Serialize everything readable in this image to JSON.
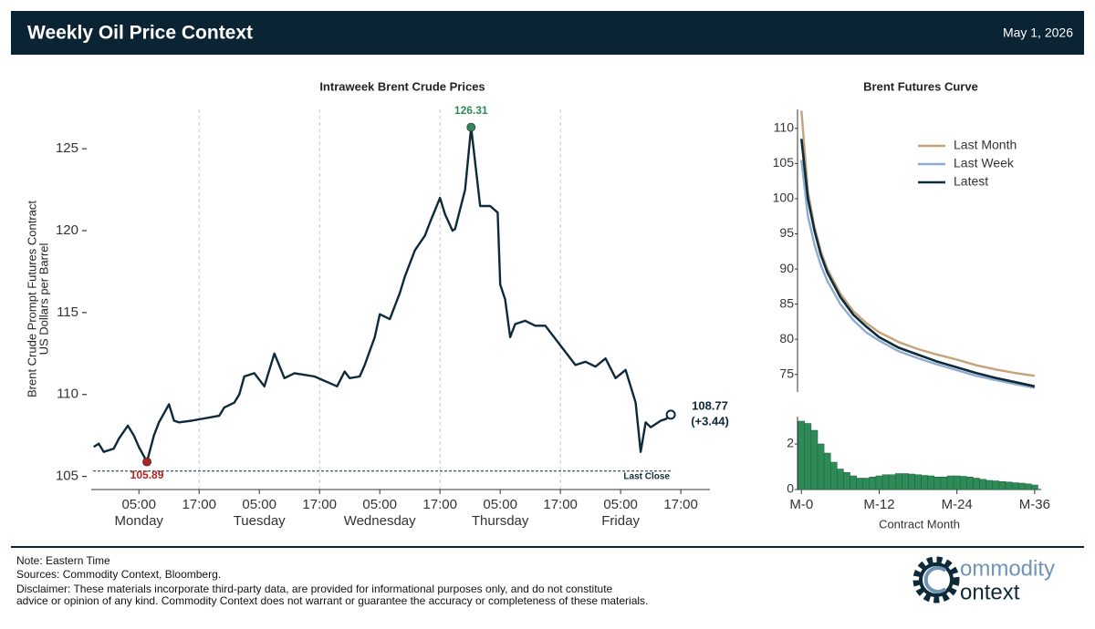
{
  "header": {
    "title": "Weekly Oil Price Context",
    "date": "May 1, 2026"
  },
  "chart_data": [
    {
      "type": "line",
      "title": "Intraweek Brent Crude Prices",
      "ylabel": [
        "Brent Crude Prompt Futures Contract",
        "US Dollars per Barrel"
      ],
      "color": "#0d2a3a",
      "high_color": "#2e8b57",
      "low_color": "#b22222",
      "x": [
        -4,
        -3,
        -2,
        0,
        1,
        2.8,
        4,
        5,
        6.6,
        8,
        9,
        11,
        12,
        13,
        15.5,
        21,
        22,
        24,
        25,
        26,
        28,
        30,
        32,
        34,
        36,
        38,
        40,
        44.5,
        46,
        47,
        49,
        50,
        52,
        53,
        55,
        57,
        58,
        60,
        62,
        63,
        65,
        66,
        67.5,
        68,
        70,
        71.2,
        73,
        75,
        76.5,
        77,
        78,
        79,
        80,
        82,
        84,
        86,
        92,
        94,
        96,
        98,
        100,
        102,
        104,
        105,
        106,
        107,
        109,
        110,
        111
      ],
      "values": [
        106.8,
        107.0,
        106.5,
        106.7,
        107.3,
        108.1,
        107.5,
        106.8,
        105.89,
        107.5,
        108.3,
        109.4,
        108.4,
        108.3,
        108.4,
        108.7,
        109.2,
        109.5,
        110.0,
        111.1,
        111.3,
        110.5,
        112.5,
        111.0,
        111.3,
        111.2,
        111.1,
        110.5,
        111.4,
        111.0,
        111.1,
        111.8,
        113.5,
        114.9,
        114.6,
        116.2,
        117.2,
        118.8,
        119.7,
        120.5,
        122.0,
        121.0,
        120.0,
        120.1,
        122.5,
        126.31,
        121.5,
        121.5,
        121.1,
        116.7,
        115.8,
        113.5,
        114.3,
        114.5,
        114.2,
        114.2,
        111.8,
        112.0,
        111.7,
        112.2,
        111.0,
        111.5,
        109.5,
        106.5,
        108.3,
        108.0,
        108.4,
        108.5,
        108.77
      ],
      "change": {
        "value": 3.44,
        "label": "(+3.44)"
      },
      "reference_line": {
        "value": 105.33,
        "label": "Last Close"
      },
      "xlim": [
        -4.5,
        118.8
      ],
      "ylim": [
        104.2,
        127.4
      ],
      "yticks": [
        105,
        110,
        115,
        120,
        125
      ],
      "xticks": [
        {
          "value": 5,
          "label": "05:00"
        },
        {
          "value": 17,
          "label": "17:00"
        },
        {
          "value": 29,
          "label": "05:00"
        },
        {
          "value": 41,
          "label": "17:00"
        },
        {
          "value": 53,
          "label": "05:00"
        },
        {
          "value": 65,
          "label": "17:00"
        },
        {
          "value": 77,
          "label": "05:00"
        },
        {
          "value": 89,
          "label": "17:00"
        },
        {
          "value": 101,
          "label": "05:00"
        },
        {
          "value": 113,
          "label": "17:00"
        }
      ],
      "day_labels": [
        "Monday",
        "Tuesday",
        "Wednesday",
        "Thursday",
        "Friday"
      ]
    },
    {
      "type": "line",
      "title": "Brent Futures Curve",
      "x": [
        0,
        1,
        2,
        3,
        4,
        6,
        8,
        10,
        12,
        15,
        18,
        21,
        24,
        27,
        30,
        33,
        36
      ],
      "series": [
        {
          "name": "Last Month",
          "color": "#c4a27a",
          "values": [
            112.5,
            101,
            96,
            92.5,
            90,
            86.5,
            84,
            82.3,
            81.0,
            79.6,
            78.6,
            77.8,
            77.1,
            76.3,
            75.7,
            75.2,
            74.8
          ]
        },
        {
          "name": "Last Week",
          "color": "#8fabd0",
          "values": [
            105.5,
            97.5,
            93.5,
            90.5,
            88.3,
            85.0,
            82.7,
            81.0,
            79.8,
            78.3,
            77.3,
            76.4,
            75.6,
            74.8,
            74.2,
            73.6,
            73.1
          ]
        },
        {
          "name": "Latest",
          "color": "#0d2a3a",
          "values": [
            108.5,
            100,
            95.5,
            92,
            89.5,
            86,
            83.5,
            81.8,
            80.3,
            78.8,
            77.8,
            76.8,
            76.0,
            75.2,
            74.5,
            73.9,
            73.3
          ]
        }
      ],
      "legend": "upper right",
      "xlim": [
        -0.6,
        37
      ],
      "ylim": [
        72.5,
        112.7
      ],
      "yticks": [
        75,
        80,
        85,
        90,
        95,
        100,
        105,
        110
      ]
    },
    {
      "type": "bar",
      "xlabel": "Contract Month",
      "color": "#2e8b57",
      "x": [
        0,
        1,
        2,
        3,
        4,
        5,
        6,
        7,
        8,
        9,
        10,
        11,
        12,
        13,
        14,
        15,
        16,
        17,
        18,
        19,
        20,
        21,
        22,
        23,
        24,
        25,
        26,
        27,
        28,
        29,
        30,
        31,
        32,
        33,
        34,
        35,
        36
      ],
      "values": [
        3.0,
        2.9,
        2.6,
        2.0,
        1.6,
        1.2,
        0.9,
        0.75,
        0.6,
        0.5,
        0.5,
        0.55,
        0.6,
        0.65,
        0.65,
        0.7,
        0.7,
        0.68,
        0.65,
        0.62,
        0.6,
        0.55,
        0.55,
        0.6,
        0.6,
        0.58,
        0.55,
        0.5,
        0.45,
        0.4,
        0.38,
        0.35,
        0.33,
        0.3,
        0.28,
        0.25,
        0.2
      ],
      "xlim": [
        -0.6,
        37
      ],
      "ylim": [
        0,
        3.2
      ],
      "yticks": [
        0,
        2
      ],
      "xticks": [
        {
          "value": 0,
          "label": "M-0"
        },
        {
          "value": 12,
          "label": "M-12"
        },
        {
          "value": 24,
          "label": "M-24"
        },
        {
          "value": 36,
          "label": "M-36"
        }
      ]
    }
  ],
  "footer": {
    "note": "Note: Eastern Time",
    "sources": "Sources: Commodity Context, Bloomberg.",
    "disclaimer": [
      "Disclaimer: These materials incorporate third-party data, are provided for informational purposes only, and do not constitute",
      "advice or opinion of any kind. Commodity Context does not warrant or guarantee the accuracy or completeness of these materials."
    ]
  },
  "logo": {
    "line1": "ommodity",
    "line2": "ontext"
  }
}
